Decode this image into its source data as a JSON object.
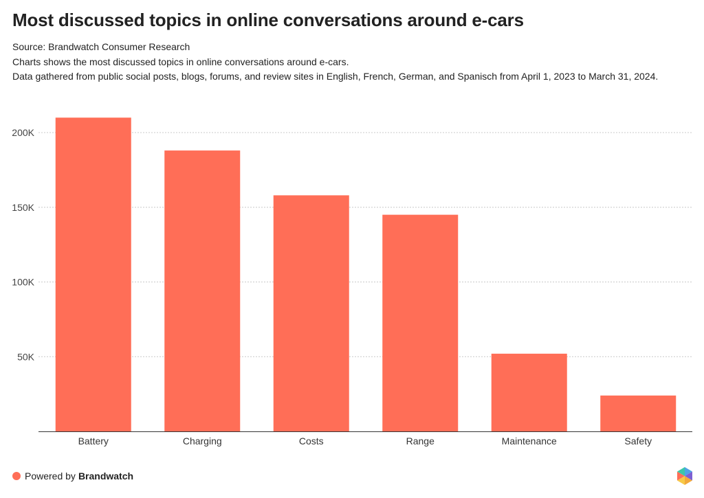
{
  "title": "Most discussed topics in online conversations around e-cars",
  "source": "Source: Brandwatch Consumer Research",
  "description_line1": "Charts shows the most discussed topics in online conversations around e-cars.",
  "description_line2": "Data gathered from public social posts, blogs, forums, and review sites in English, French, German, and Spanisch from April 1, 2023 to March 31, 2024.",
  "footer": {
    "powered_by": "Powered by",
    "brand": "Brandwatch",
    "dot_color": "#ff6e57",
    "logo_icon": "brandwatch-hexagon-logo"
  },
  "chart_data": {
    "type": "bar",
    "categories": [
      "Battery",
      "Charging",
      "Costs",
      "Range",
      "Maintenance",
      "Safety"
    ],
    "values": [
      210000,
      188000,
      158000,
      145000,
      52000,
      24000
    ],
    "ylim": [
      0,
      200000
    ],
    "yticks": [
      50000,
      100000,
      150000,
      200000
    ],
    "ytick_labels": [
      "50K",
      "100K",
      "150K",
      "200K"
    ],
    "bar_color": "#ff6e57",
    "grid": "dashed horizontal",
    "xlabel": "",
    "ylabel": ""
  }
}
